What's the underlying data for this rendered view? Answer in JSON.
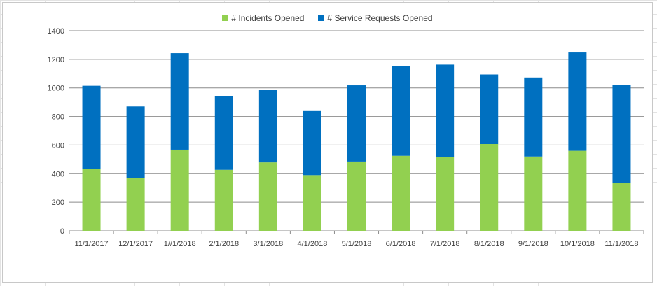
{
  "chart_data": {
    "type": "bar",
    "stacked": true,
    "categories": [
      "11/1/2017",
      "12/1/2017",
      "1//1/2018",
      "2/1/2018",
      "3/1/2018",
      "4/1/2018",
      "5/1/2018",
      "6/1/2018",
      "7/1/2018",
      "8/1/2018",
      "9/1/2018",
      "10/1/2018",
      "11/1/2018"
    ],
    "series": [
      {
        "name": "# Incidents Opened",
        "color": "#92d050",
        "values": [
          435,
          372,
          568,
          427,
          479,
          390,
          485,
          525,
          515,
          607,
          520,
          560,
          334
        ]
      },
      {
        "name": "# Service Requests Opened",
        "color": "#0070c0",
        "values": [
          580,
          498,
          675,
          513,
          506,
          448,
          533,
          630,
          648,
          487,
          553,
          688,
          689
        ]
      }
    ],
    "ylim": [
      0,
      1400
    ],
    "yticks": [
      "0",
      "200",
      "400",
      "600",
      "800",
      "1000",
      "1200",
      "1400"
    ],
    "grid": true,
    "legend_position": "top"
  }
}
